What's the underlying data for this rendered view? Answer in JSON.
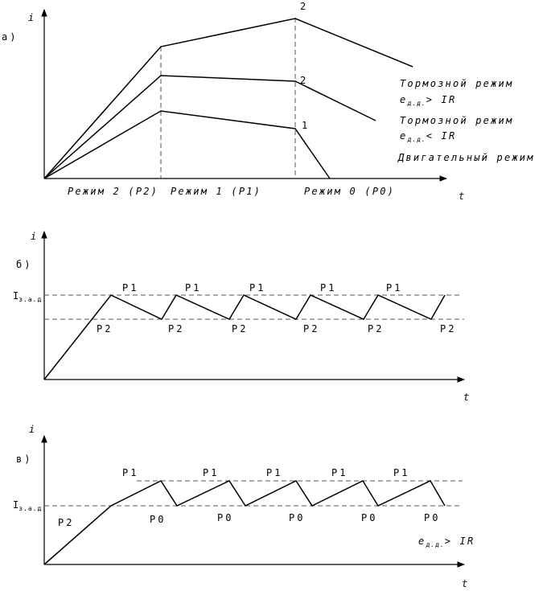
{
  "panel_a": {
    "tag": "а)",
    "ylabel": "i",
    "xlabel": "t",
    "curve_labels": [
      "2",
      "2",
      "1"
    ],
    "mode_labels": [
      "Режим 2 (Р2)",
      "Режим 1 (Р1)",
      "Режим 0 (Р0)"
    ],
    "legend": {
      "brake_gt": "Тормозной режим",
      "brake_gt_cond_e": "e",
      "brake_gt_cond_sub": "д.д.",
      "brake_gt_cond_rest": "> IR",
      "brake_lt": "Тормозной режим",
      "brake_lt_cond_e": "e",
      "brake_lt_cond_sub": "д.д.",
      "brake_lt_cond_rest": "< IR",
      "motor": "Двигательный режим"
    }
  },
  "panel_b": {
    "tag": "б)",
    "ylabel": "i",
    "xlabel": "t",
    "level_label": "I",
    "level_sub": "з.а.д.",
    "top_labels": [
      "Р1",
      "Р1",
      "Р1",
      "Р1",
      "Р1"
    ],
    "bottom_labels": [
      "Р2",
      "Р2",
      "Р2",
      "Р2",
      "Р2",
      "Р2"
    ]
  },
  "panel_c": {
    "tag": "в)",
    "ylabel": "i",
    "xlabel": "t",
    "level_label": "I",
    "level_sub": "з.а.д.",
    "start_label": "Р2",
    "top_labels": [
      "Р1",
      "Р1",
      "Р1",
      "Р1",
      "Р1"
    ],
    "bottom_labels": [
      "Р0",
      "Р0",
      "Р0",
      "Р0",
      "Р0"
    ],
    "cond_e": "e",
    "cond_sub": "д.д.",
    "cond_rest": "> IR"
  }
}
